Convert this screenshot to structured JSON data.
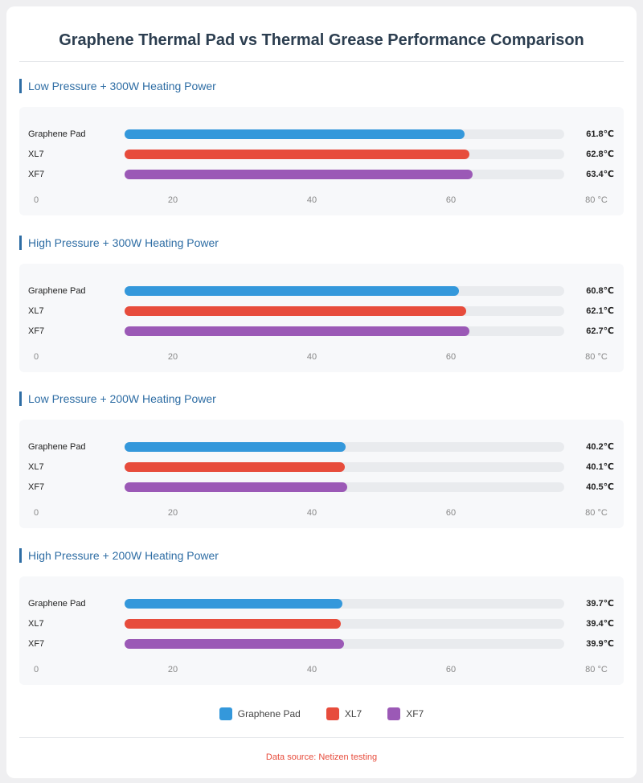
{
  "title": "Graphene Thermal Pad vs Thermal Grease Performance Comparison",
  "chart_data": {
    "type": "bar",
    "orientation": "horizontal",
    "title": "Graphene Thermal Pad vs Thermal Grease Performance Comparison",
    "xlim": [
      0,
      80
    ],
    "ticks": [
      "0",
      "20",
      "40",
      "60",
      "80 °C"
    ],
    "unit": "℃",
    "legend_position": "bottom",
    "series_names": [
      "Graphene Pad",
      "XL7",
      "XF7"
    ],
    "colors": [
      "#3498db",
      "#e74c3c",
      "#9b59b6"
    ],
    "groups": [
      {
        "title": "Low Pressure + 300W Heating Power",
        "values": [
          61.8,
          62.8,
          63.4
        ],
        "labels": [
          "61.8℃",
          "62.8℃",
          "63.4℃"
        ]
      },
      {
        "title": "High Pressure + 300W Heating Power",
        "values": [
          60.8,
          62.1,
          62.7
        ],
        "labels": [
          "60.8℃",
          "62.1℃",
          "62.7℃"
        ]
      },
      {
        "title": "Low Pressure + 200W Heating Power",
        "values": [
          40.2,
          40.1,
          40.5
        ],
        "labels": [
          "40.2℃",
          "40.1℃",
          "40.5℃"
        ]
      },
      {
        "title": "High Pressure + 200W Heating Power",
        "values": [
          39.7,
          39.4,
          39.9
        ],
        "labels": [
          "39.7℃",
          "39.4℃",
          "39.9℃"
        ]
      }
    ]
  },
  "footer": {
    "source": "Data source: Netizen testing"
  }
}
